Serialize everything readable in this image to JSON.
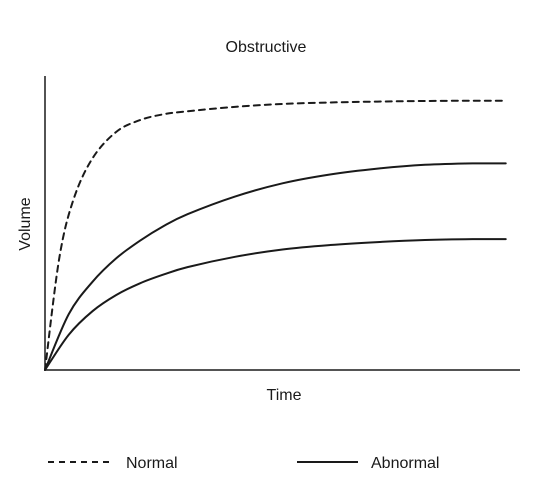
{
  "chart_data": {
    "type": "line",
    "title": "Obstructive",
    "xlabel": "Time",
    "ylabel": "Volume",
    "x_tick_labels": [],
    "y_tick_labels": [],
    "grid": false,
    "legend_position": "bottom",
    "legend": [
      {
        "label": "Normal",
        "style": "dashed"
      },
      {
        "label": "Abnormal",
        "style": "solid"
      }
    ],
    "xlim": [
      0,
      100
    ],
    "ylim": [
      0,
      100
    ],
    "series": [
      {
        "style": "dashed",
        "color": "#1a1a1a",
        "x": [
          0,
          3,
          6,
          10,
          15,
          20,
          25,
          30,
          40,
          50,
          60,
          70,
          80,
          90,
          97
        ],
        "y": [
          0,
          38,
          58,
          72,
          81,
          85,
          87,
          88,
          89.5,
          90.5,
          91,
          91.3,
          91.5,
          91.6,
          91.6
        ]
      },
      {
        "style": "solid",
        "color": "#1a1a1a",
        "x": [
          0,
          5,
          10,
          15,
          20,
          25,
          30,
          40,
          50,
          60,
          70,
          80,
          90,
          97
        ],
        "y": [
          0,
          19,
          30,
          38,
          44,
          49,
          53,
          59,
          63.5,
          66.5,
          68.5,
          69.8,
          70.3,
          70.3
        ]
      },
      {
        "style": "solid",
        "color": "#1a1a1a",
        "x": [
          0,
          5,
          10,
          15,
          20,
          25,
          30,
          40,
          50,
          60,
          70,
          80,
          90,
          97
        ],
        "y": [
          0,
          12,
          20,
          25.5,
          29.5,
          32.5,
          35,
          38.5,
          41,
          42.5,
          43.5,
          44.2,
          44.5,
          44.5
        ]
      }
    ]
  }
}
